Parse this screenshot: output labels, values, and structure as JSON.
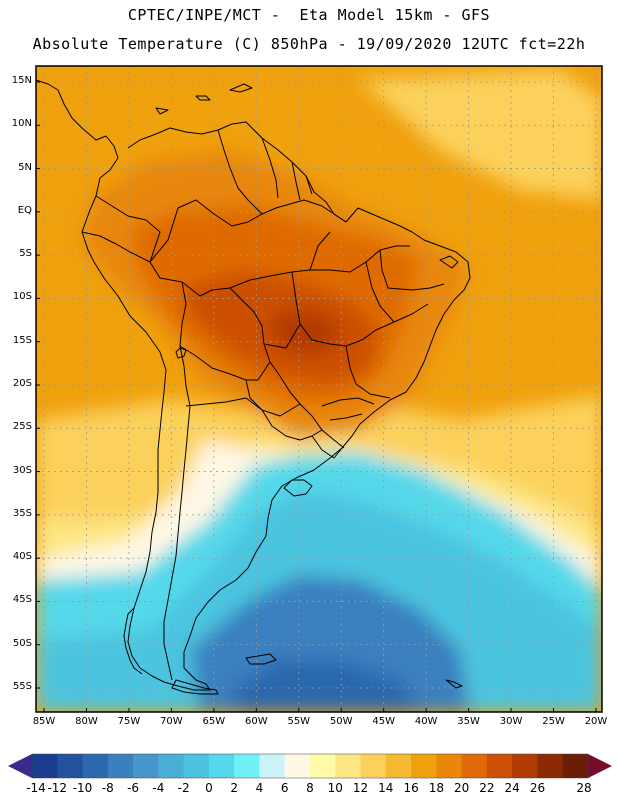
{
  "header": {
    "line1": "CPTEC/INPE/MCT -  Eta Model 15km - GFS",
    "line2": "Absolute Temperature (C) 850hPa - 19/09/2020 12UTC fct=22h"
  },
  "axes": {
    "lat_labels": [
      "15N",
      "10N",
      "5N",
      "EQ",
      "5S",
      "10S",
      "15S",
      "20S",
      "25S",
      "30S",
      "35S",
      "40S",
      "45S",
      "50S",
      "55S"
    ],
    "lon_labels": [
      "85W",
      "80W",
      "75W",
      "70W",
      "65W",
      "60W",
      "55W",
      "50W",
      "45W",
      "40W",
      "35W",
      "30W",
      "25W",
      "20W"
    ]
  },
  "colorbar": {
    "labels": [
      "-14",
      "-12",
      "-10",
      "-8",
      "-6",
      "-4",
      "-2",
      "0",
      "2",
      "4",
      "6",
      "8",
      "10",
      "12",
      "14",
      "16",
      "18",
      "20",
      "22",
      "24",
      "26",
      "28"
    ],
    "colors": [
      "#1a3d8f",
      "#22519e",
      "#2c68ad",
      "#3a80bf",
      "#4796cc",
      "#4aaed6",
      "#4cc4e0",
      "#55d8ea",
      "#6ff1f5",
      "#ccf3f8",
      "#fff8e5",
      "#fffba8",
      "#fde684",
      "#fbd15b",
      "#f5b932",
      "#f0a10e",
      "#e88709",
      "#df6a06",
      "#cc4f04",
      "#b03b03",
      "#8b2a03",
      "#6b1e06"
    ]
  },
  "field_colors": {
    "ocean_north": "#f0a10e",
    "warm": "#e88709",
    "hot": "#df6a06",
    "core": "#cc4f04",
    "extreme": "#b03b03",
    "mild": "#fbd15b",
    "cool": "#fde684",
    "pale": "#fff8e5",
    "cyan": "#55d8ea",
    "cyan2": "#4cc4e0",
    "blue": "#3a80bf",
    "blue2": "#2c68ad",
    "coast": "#000000",
    "grid": "#9a9a9a"
  }
}
